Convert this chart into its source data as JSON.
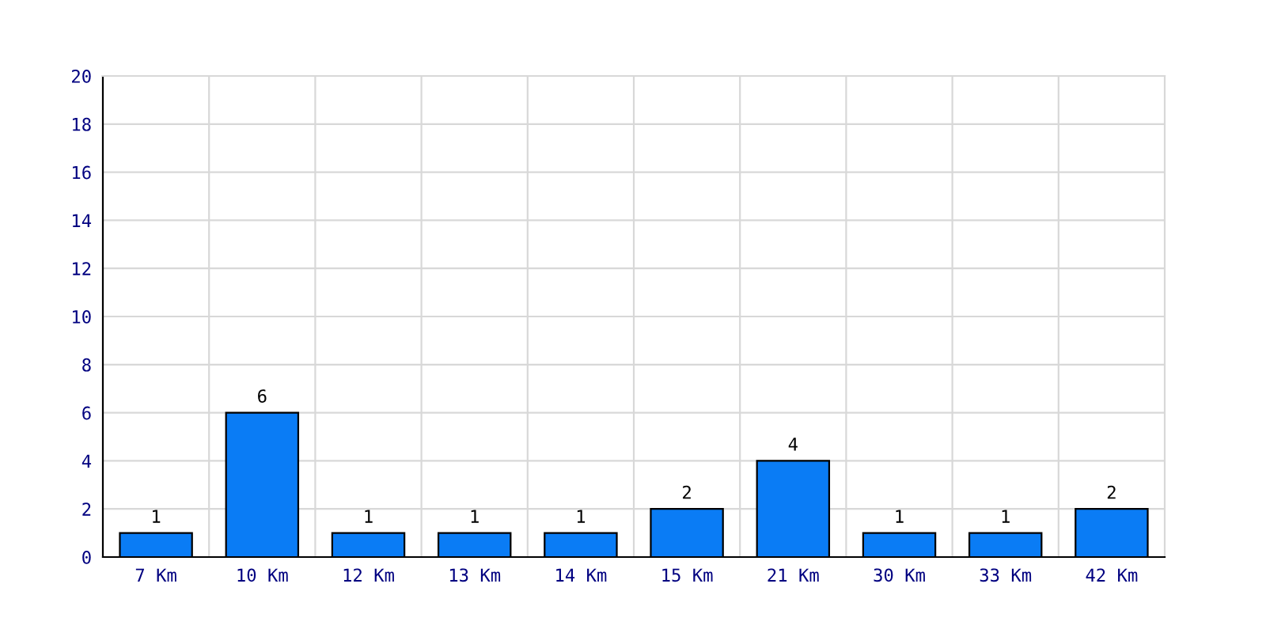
{
  "chart_data": {
    "type": "bar",
    "categories": [
      "7 Km",
      "10 Km",
      "12 Km",
      "13 Km",
      "14 Km",
      "15 Km",
      "21 Km",
      "30 Km",
      "33 Km",
      "42 Km"
    ],
    "values": [
      1,
      6,
      1,
      1,
      1,
      2,
      4,
      1,
      1,
      2
    ],
    "color": "#0a7cf5",
    "ylim": [
      0,
      20
    ],
    "yticks": [
      0,
      2,
      4,
      6,
      8,
      10,
      12,
      14,
      16,
      18,
      20
    ],
    "grid": true,
    "data_labels": true
  }
}
